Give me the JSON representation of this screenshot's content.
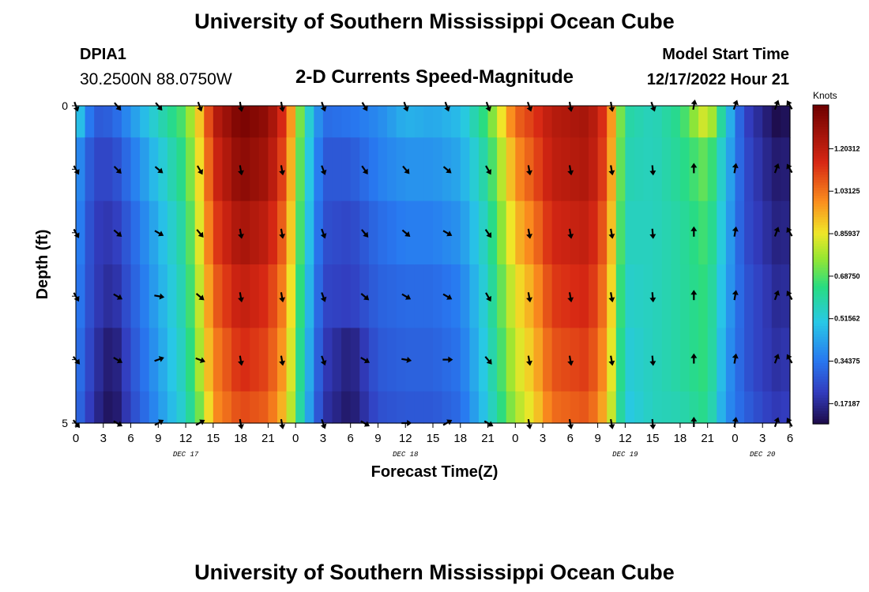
{
  "title": "University of Southern Mississippi Ocean Cube",
  "footer_title": "University of Southern Mississippi Ocean Cube",
  "station": {
    "id": "DPIA1",
    "coords": "30.2500N  88.0750W"
  },
  "model": {
    "label": "Model Start Time",
    "time": "12/17/2022 Hour 21"
  },
  "chart_data": {
    "type": "heatmap",
    "title": "2-D Currents Speed-Magnitude",
    "xlabel": "Forecast Time(Z)",
    "ylabel": "Depth (ft)",
    "colorbar_label": "Knots",
    "colorbar_ticks": [
      "0.17187",
      "0.34375",
      "0.51562",
      "0.68750",
      "0.85937",
      "1.03125",
      "1.20312"
    ],
    "color_range": [
      0.09,
      1.38
    ],
    "y_ticks": [
      "0",
      "5"
    ],
    "x_ticks": [
      "0",
      "3",
      "6",
      "9",
      "12",
      "15",
      "18",
      "21",
      "0",
      "3",
      "6",
      "9",
      "12",
      "15",
      "18",
      "21",
      "0",
      "3",
      "6",
      "9",
      "12",
      "15",
      "18",
      "21",
      "0",
      "3",
      "6"
    ],
    "day_labels": [
      {
        "label": "DEC 17",
        "hour": 12
      },
      {
        "label": "DEC 18",
        "hour": 36
      },
      {
        "label": "DEC 19",
        "hour": 60
      },
      {
        "label": "DEC 20",
        "hour": 75
      }
    ],
    "hours_span": [
      0,
      78
    ],
    "depth_levels": 5,
    "speed_profile": [
      {
        "hour": 0,
        "values": [
          0.55,
          0.42,
          0.4,
          0.38,
          0.36,
          0.34
        ]
      },
      {
        "hour": 2,
        "values": [
          0.28,
          0.24,
          0.22,
          0.22,
          0.2,
          0.18
        ]
      },
      {
        "hour": 4,
        "values": [
          0.3,
          0.24,
          0.2,
          0.17,
          0.12,
          0.1
        ]
      },
      {
        "hour": 6,
        "values": [
          0.4,
          0.34,
          0.3,
          0.28,
          0.26,
          0.24
        ]
      },
      {
        "hour": 9,
        "values": [
          0.56,
          0.5,
          0.46,
          0.44,
          0.42,
          0.4
        ]
      },
      {
        "hour": 12,
        "values": [
          0.7,
          0.66,
          0.62,
          0.6,
          0.58,
          0.56
        ]
      },
      {
        "hour": 14,
        "values": [
          0.98,
          0.95,
          0.92,
          0.88,
          0.85,
          0.78
        ]
      },
      {
        "hour": 15,
        "values": [
          1.2,
          1.15,
          1.1,
          1.05,
          1.0,
          0.98
        ]
      },
      {
        "hour": 18,
        "values": [
          1.36,
          1.32,
          1.26,
          1.2,
          1.15,
          1.1
        ]
      },
      {
        "hour": 21,
        "values": [
          1.3,
          1.26,
          1.2,
          1.14,
          1.1,
          1.06
        ]
      },
      {
        "hour": 23,
        "values": [
          1.1,
          1.06,
          1.02,
          0.98,
          0.94,
          0.9
        ]
      },
      {
        "hour": 25,
        "values": [
          0.6,
          0.58,
          0.56,
          0.54,
          0.52,
          0.5
        ]
      },
      {
        "hour": 27,
        "values": [
          0.32,
          0.28,
          0.26,
          0.24,
          0.22,
          0.2
        ]
      },
      {
        "hour": 30,
        "values": [
          0.34,
          0.28,
          0.24,
          0.22,
          0.14,
          0.12
        ]
      },
      {
        "hour": 33,
        "values": [
          0.38,
          0.36,
          0.32,
          0.3,
          0.28,
          0.26
        ]
      },
      {
        "hour": 36,
        "values": [
          0.46,
          0.4,
          0.36,
          0.32,
          0.3,
          0.28
        ]
      },
      {
        "hour": 39,
        "values": [
          0.44,
          0.4,
          0.36,
          0.32,
          0.3,
          0.28
        ]
      },
      {
        "hour": 42,
        "values": [
          0.48,
          0.44,
          0.4,
          0.36,
          0.34,
          0.32
        ]
      },
      {
        "hour": 45,
        "values": [
          0.68,
          0.62,
          0.58,
          0.56,
          0.54,
          0.52
        ]
      },
      {
        "hour": 48,
        "values": [
          1.05,
          0.98,
          0.92,
          0.86,
          0.82,
          0.78
        ]
      },
      {
        "hour": 50,
        "values": [
          1.12,
          1.08,
          1.02,
          0.96,
          0.92,
          0.88
        ]
      },
      {
        "hour": 52,
        "values": [
          1.22,
          1.2,
          1.16,
          1.12,
          1.08,
          1.04
        ]
      },
      {
        "hour": 56,
        "values": [
          1.26,
          1.24,
          1.2,
          1.16,
          1.12,
          1.08
        ]
      },
      {
        "hour": 58,
        "values": [
          1.1,
          1.08,
          1.04,
          1.0,
          0.96,
          0.92
        ]
      },
      {
        "hour": 60,
        "values": [
          0.6,
          0.58,
          0.56,
          0.54,
          0.52,
          0.5
        ]
      },
      {
        "hour": 63,
        "values": [
          0.56,
          0.56,
          0.56,
          0.56,
          0.56,
          0.56
        ]
      },
      {
        "hour": 66,
        "values": [
          0.64,
          0.62,
          0.6,
          0.6,
          0.6,
          0.58
        ]
      },
      {
        "hour": 69,
        "values": [
          0.86,
          0.72,
          0.68,
          0.66,
          0.66,
          0.64
        ]
      },
      {
        "hour": 71,
        "values": [
          0.52,
          0.48,
          0.46,
          0.44,
          0.42,
          0.4
        ]
      },
      {
        "hour": 73,
        "values": [
          0.24,
          0.26,
          0.26,
          0.28,
          0.28,
          0.3
        ]
      },
      {
        "hour": 75,
        "values": [
          0.16,
          0.18,
          0.2,
          0.22,
          0.22,
          0.24
        ]
      },
      {
        "hour": 77,
        "values": [
          0.08,
          0.12,
          0.14,
          0.16,
          0.18,
          0.2
        ]
      },
      {
        "hour": 78,
        "values": [
          0.14,
          0.16,
          0.18,
          0.2,
          0.22,
          0.24
        ]
      }
    ],
    "arrows": {
      "hours": [
        0,
        4.5,
        9,
        13.5,
        18,
        22.5,
        27,
        31.5,
        36,
        40.5,
        45,
        49.5,
        54,
        58.5,
        63,
        67.5,
        72,
        76.5,
        78
      ],
      "depth_rows": [
        0,
        1,
        2,
        3,
        4,
        5
      ],
      "directions_deg": [
        [
          160,
          140,
          140,
          160,
          170,
          170,
          160,
          150,
          160,
          160,
          160,
          160,
          170,
          170,
          160,
          10,
          20,
          20,
          330
        ],
        [
          150,
          135,
          130,
          150,
          170,
          170,
          160,
          145,
          140,
          130,
          150,
          170,
          170,
          170,
          175,
          0,
          10,
          20,
          330
        ],
        [
          150,
          130,
          120,
          140,
          170,
          170,
          160,
          140,
          130,
          120,
          145,
          170,
          170,
          170,
          175,
          0,
          10,
          20,
          330
        ],
        [
          150,
          120,
          100,
          130,
          170,
          170,
          160,
          130,
          120,
          120,
          150,
          170,
          170,
          170,
          175,
          0,
          10,
          20,
          330
        ],
        [
          140,
          120,
          70,
          110,
          170,
          170,
          160,
          120,
          100,
          90,
          140,
          170,
          170,
          170,
          175,
          0,
          10,
          20,
          330
        ],
        [
          140,
          120,
          60,
          60,
          170,
          170,
          160,
          120,
          90,
          60,
          120,
          170,
          170,
          170,
          175,
          0,
          10,
          20,
          330
        ]
      ]
    }
  }
}
